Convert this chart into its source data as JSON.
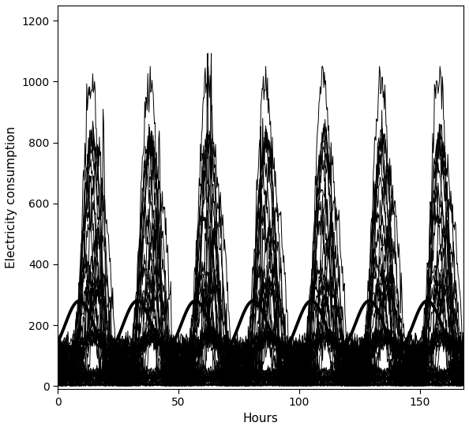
{
  "title": "",
  "xlabel": "Hours",
  "ylabel": "Electricity consumption",
  "xlim": [
    0,
    168
  ],
  "ylim": [
    -10,
    1250
  ],
  "xticks": [
    0,
    50,
    100,
    150
  ],
  "yticks": [
    0,
    200,
    400,
    600,
    800,
    1000,
    1200
  ],
  "n_hours": 168,
  "background_color": "#ffffff",
  "individual_color": "#000000",
  "mean_color": "#000000",
  "individual_lw": 0.7,
  "mean_lw": 2.8,
  "seed": 7
}
